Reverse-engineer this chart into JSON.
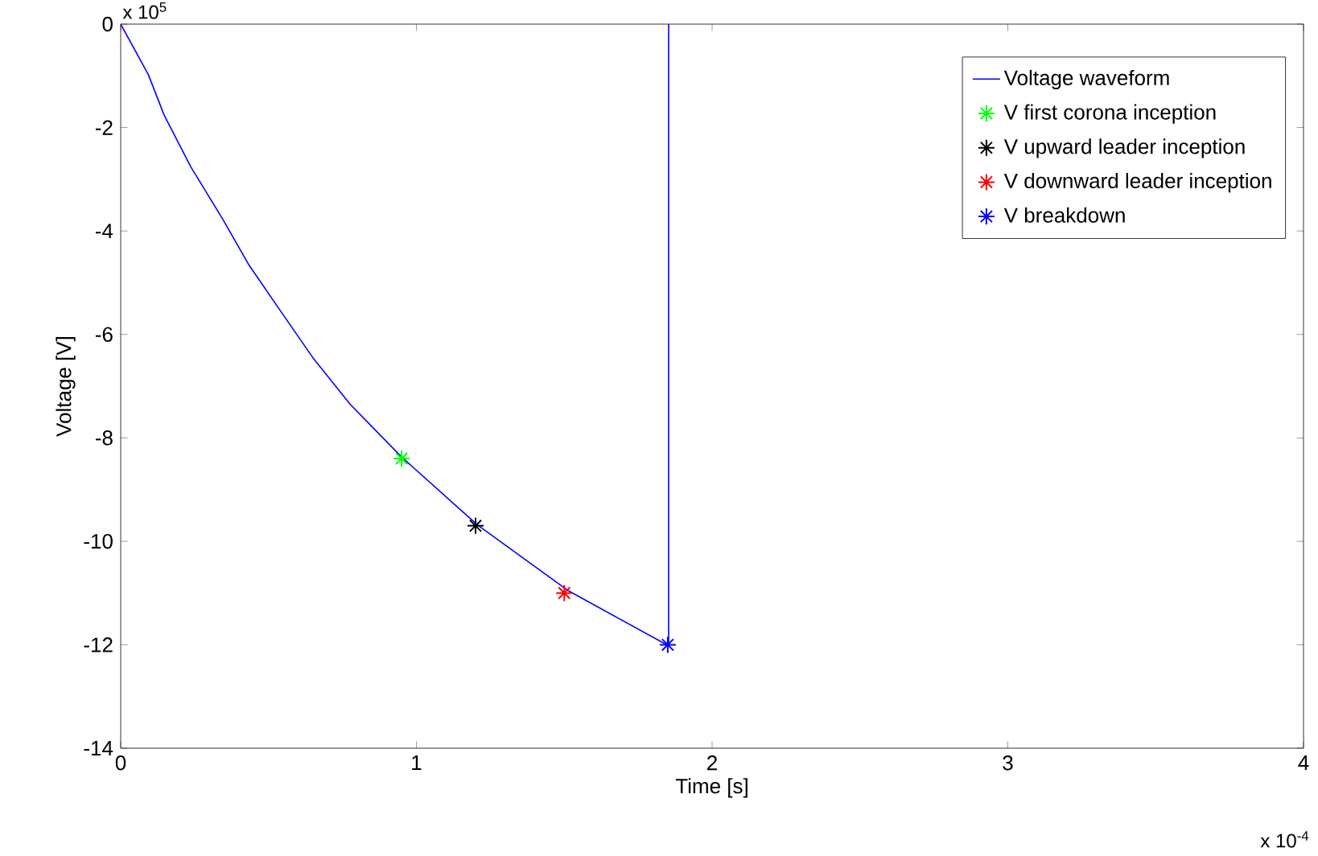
{
  "chart_data": {
    "type": "line",
    "xlabel": "Time [s]",
    "ylabel": "Voltage [V]",
    "xlim": [
      0,
      4
    ],
    "xticks": [
      0,
      1,
      2,
      3,
      4
    ],
    "ylim": [
      -14,
      0
    ],
    "yticks": [
      -14,
      -12,
      -10,
      -8,
      -6,
      -4,
      -2,
      0
    ],
    "legend": "top right",
    "marker": "cross",
    "annotations": [
      "x 10$^{5}$",
      "x 10$^{-4}$"
    ],
    "series": [
      {
        "name": "Voltage waveform",
        "type": "line",
        "marker": "none",
        "color": "#0000ff",
        "x": [
          0,
          0.093,
          0.147,
          0.237,
          0.345,
          0.434,
          0.542,
          0.65,
          0.776,
          0.948,
          1.206,
          1.515,
          1.853,
          1.853
        ],
        "values": [
          0,
          -0.97,
          -1.76,
          -2.76,
          -3.77,
          -4.66,
          -5.56,
          -6.45,
          -7.35,
          -8.36,
          -9.68,
          -10.96,
          -12.02,
          0
        ]
      },
      {
        "name": "V first corona inception",
        "type": "scatter",
        "color": "#00ff00",
        "x": [
          0.95
        ],
        "values": [
          -8.4
        ]
      },
      {
        "name": "V upward leader inception",
        "type": "scatter",
        "color": "#000000",
        "x": [
          1.2
        ],
        "values": [
          -9.7
        ]
      },
      {
        "name": "V downward leader inception",
        "type": "scatter",
        "color": "#ff0000",
        "x": [
          1.5
        ],
        "values": [
          -11.0
        ]
      },
      {
        "name": "V breakdown",
        "type": "scatter",
        "color": "#0000ff",
        "x": [
          1.85
        ],
        "values": [
          -12.0
        ]
      }
    ]
  }
}
